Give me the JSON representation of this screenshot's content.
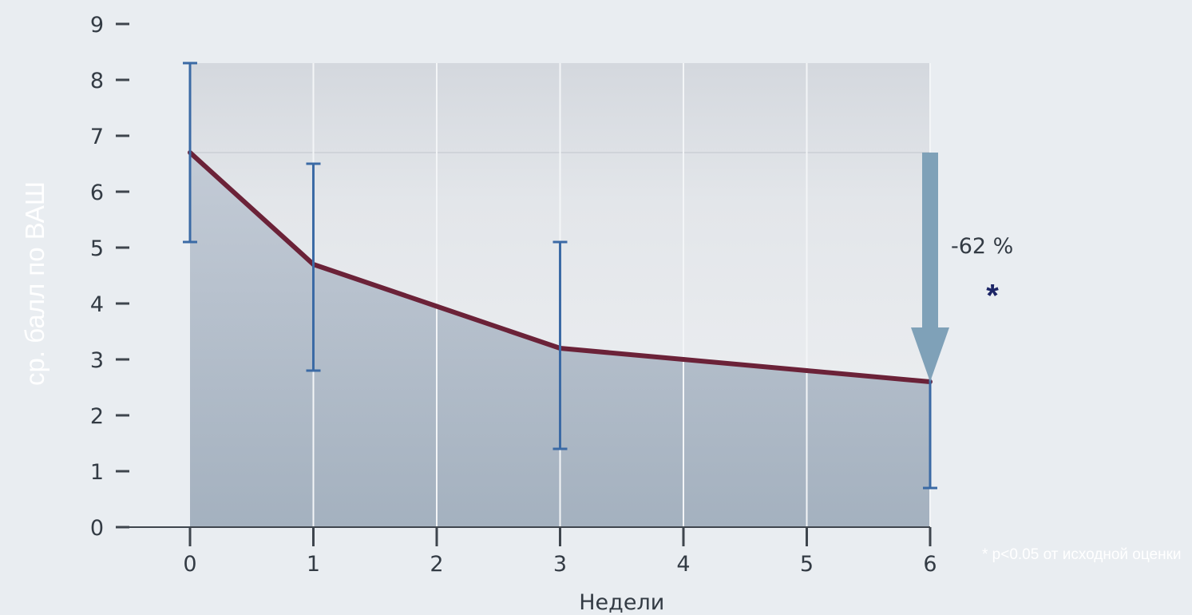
{
  "chart_data": {
    "type": "line",
    "xlabel": "Недели",
    "ylabel": "ср. балл по ВАШ",
    "xlim": [
      0,
      6
    ],
    "ylim": [
      0,
      9
    ],
    "x_ticks": [
      "0",
      "1",
      "2",
      "3",
      "4",
      "5",
      "6"
    ],
    "y_ticks": [
      "0",
      "1",
      "2",
      "3",
      "4",
      "5",
      "6",
      "7",
      "8",
      "9"
    ],
    "grid": true,
    "series": [
      {
        "x": [
          0,
          1,
          2,
          3,
          4,
          5,
          6
        ],
        "y": [
          6.7,
          4.7,
          3.95,
          3.2,
          3.0,
          2.8,
          2.6
        ],
        "color": "#6b2238"
      }
    ],
    "error_bars": [
      {
        "x": 0,
        "low": 5.1,
        "high": 8.3
      },
      {
        "x": 1,
        "low": 2.8,
        "high": 6.5
      },
      {
        "x": 3,
        "low": 1.4,
        "high": 5.1
      },
      {
        "x": 6,
        "low": 0.7,
        "high": 4.5
      }
    ],
    "annotations": {
      "change_label": "-62 %",
      "significance_marker": "*",
      "footnote": "* p<0.05 от исходной оценки"
    }
  },
  "colors": {
    "line": "#6b2238",
    "error_bar": "#3b6aa5",
    "arrow": "#7fa1b8",
    "background": "#e9edf1"
  }
}
